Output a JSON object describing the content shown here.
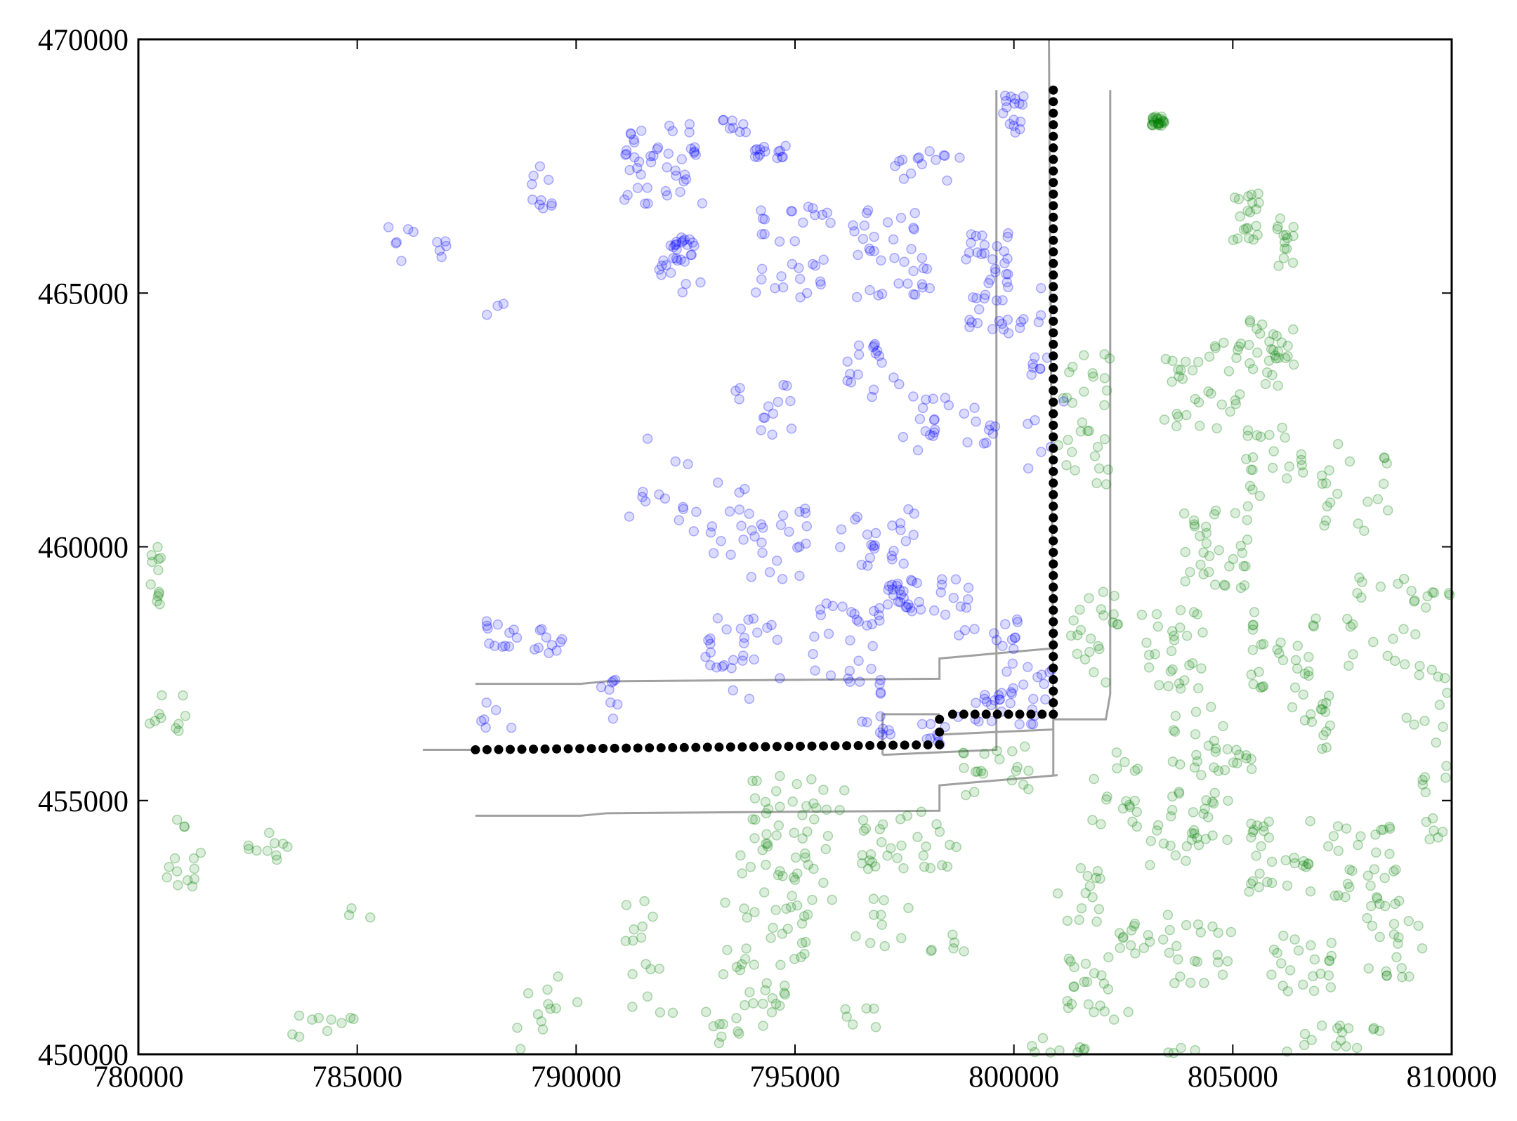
{
  "chart_data": {
    "type": "scatter",
    "title": "",
    "xlabel": "",
    "ylabel": "",
    "xlim": [
      780000,
      810000
    ],
    "ylim": [
      450000,
      470000
    ],
    "xticks": [
      780000,
      785000,
      790000,
      795000,
      800000,
      805000,
      810000
    ],
    "yticks": [
      450000,
      455000,
      460000,
      465000,
      470000
    ],
    "xtick_labels": [
      "780000",
      "785000",
      "790000",
      "795000",
      "800000",
      "805000",
      "810000"
    ],
    "ytick_labels": [
      "450000",
      "455000",
      "460000",
      "465000",
      "470000"
    ],
    "grid": false,
    "legend": "none",
    "colors": {
      "blue_points": "#0000ff",
      "green_points": "#008000",
      "path": "#000000",
      "boundary": "#a0a0a0"
    },
    "clusters": {
      "blue": [
        [
          786000,
          466000,
          300,
          400,
          6
        ],
        [
          786900,
          466000,
          300,
          300,
          5
        ],
        [
          788200,
          464800,
          300,
          300,
          3
        ],
        [
          789200,
          467000,
          250,
          500,
          10
        ],
        [
          792000,
          467500,
          900,
          900,
          45
        ],
        [
          794400,
          467800,
          400,
          150,
          14
        ],
        [
          793600,
          468300,
          300,
          150,
          8
        ],
        [
          798000,
          467500,
          800,
          300,
          14
        ],
        [
          792400,
          465500,
          500,
          500,
          22
        ],
        [
          792400,
          466000,
          200,
          100,
          8
        ],
        [
          795000,
          465800,
          900,
          900,
          32
        ],
        [
          797200,
          465800,
          900,
          900,
          36
        ],
        [
          799400,
          465200,
          500,
          1000,
          42
        ],
        [
          800000,
          468500,
          300,
          400,
          16
        ],
        [
          796800,
          463400,
          700,
          600,
          18
        ],
        [
          797700,
          462500,
          500,
          600,
          14
        ],
        [
          799000,
          462500,
          600,
          600,
          12
        ],
        [
          791800,
          461500,
          800,
          1100,
          12
        ],
        [
          794300,
          462700,
          700,
          600,
          14
        ],
        [
          793300,
          460500,
          700,
          800,
          14
        ],
        [
          794600,
          460000,
          700,
          800,
          22
        ],
        [
          796900,
          460000,
          900,
          800,
          28
        ],
        [
          797500,
          459000,
          400,
          300,
          20
        ],
        [
          796200,
          458000,
          800,
          900,
          32
        ],
        [
          798600,
          458800,
          500,
          600,
          14
        ],
        [
          799900,
          458000,
          500,
          600,
          12
        ],
        [
          799800,
          457000,
          700,
          500,
          24
        ],
        [
          793800,
          457800,
          900,
          800,
          28
        ],
        [
          788300,
          458300,
          500,
          300,
          12
        ],
        [
          789300,
          458200,
          400,
          300,
          10
        ],
        [
          790800,
          457000,
          500,
          400,
          8
        ],
        [
          796700,
          456400,
          500,
          300,
          8
        ],
        [
          798300,
          456400,
          500,
          300,
          10
        ],
        [
          800600,
          457300,
          300,
          400,
          8
        ],
        [
          800800,
          463200,
          400,
          600,
          8
        ],
        [
          800600,
          462000,
          300,
          600,
          5
        ],
        [
          788200,
          456700,
          400,
          300,
          6
        ],
        [
          800400,
          464700,
          300,
          400,
          6
        ]
      ],
      "green": [
        [
          780400,
          459300,
          150,
          700,
          12
        ],
        [
          780600,
          456700,
          500,
          500,
          10
        ],
        [
          781000,
          454000,
          700,
          700,
          14
        ],
        [
          783000,
          454000,
          500,
          400,
          10
        ],
        [
          785000,
          452700,
          300,
          300,
          3
        ],
        [
          784500,
          450500,
          1000,
          300,
          10
        ],
        [
          789000,
          450500,
          700,
          400,
          6
        ],
        [
          795000,
          455000,
          1200,
          500,
          24
        ],
        [
          794800,
          453700,
          1100,
          700,
          32
        ],
        [
          794500,
          452300,
          1200,
          700,
          28
        ],
        [
          794000,
          451000,
          800,
          600,
          18
        ],
        [
          797600,
          454200,
          1100,
          600,
          32
        ],
        [
          797000,
          452600,
          700,
          500,
          10
        ],
        [
          799500,
          455600,
          900,
          500,
          20
        ],
        [
          798400,
          452100,
          500,
          300,
          6
        ],
        [
          791200,
          452700,
          600,
          500,
          8
        ],
        [
          789500,
          451300,
          600,
          400,
          6
        ],
        [
          791800,
          451300,
          600,
          500,
          8
        ],
        [
          793200,
          450600,
          600,
          400,
          6
        ],
        [
          796500,
          450700,
          500,
          300,
          6
        ],
        [
          801600,
          462500,
          600,
          1300,
          30
        ],
        [
          801800,
          458200,
          600,
          1000,
          22
        ],
        [
          802300,
          455200,
          600,
          800,
          18
        ],
        [
          801500,
          453200,
          500,
          600,
          14
        ],
        [
          802000,
          451300,
          800,
          700,
          22
        ],
        [
          801500,
          450000,
          700,
          200,
          10
        ],
        [
          803300,
          468400,
          150,
          100,
          24
        ],
        [
          804300,
          463200,
          900,
          900,
          32
        ],
        [
          805300,
          466500,
          300,
          500,
          20
        ],
        [
          806200,
          466000,
          200,
          500,
          14
        ],
        [
          805800,
          463800,
          700,
          700,
          32
        ],
        [
          806000,
          461700,
          700,
          700,
          22
        ],
        [
          804500,
          460000,
          900,
          900,
          34
        ],
        [
          807800,
          461200,
          800,
          900,
          20
        ],
        [
          803600,
          458000,
          800,
          800,
          28
        ],
        [
          806200,
          458000,
          800,
          800,
          28
        ],
        [
          808300,
          458500,
          900,
          900,
          22
        ],
        [
          804300,
          456200,
          800,
          700,
          24
        ],
        [
          806800,
          456600,
          600,
          600,
          16
        ],
        [
          809400,
          457000,
          500,
          900,
          12
        ],
        [
          804000,
          454500,
          900,
          800,
          32
        ],
        [
          806000,
          454000,
          800,
          800,
          30
        ],
        [
          808000,
          453700,
          900,
          800,
          34
        ],
        [
          809600,
          455000,
          300,
          800,
          12
        ],
        [
          804300,
          452000,
          800,
          600,
          20
        ],
        [
          806500,
          451800,
          800,
          600,
          22
        ],
        [
          808700,
          452100,
          700,
          600,
          18
        ],
        [
          803000,
          452300,
          600,
          500,
          14
        ],
        [
          807300,
          450300,
          1100,
          300,
          16
        ],
        [
          805300,
          455800,
          200,
          200,
          5
        ],
        [
          803600,
          450000,
          800,
          200,
          8
        ],
        [
          800500,
          450200,
          200,
          200,
          3
        ],
        [
          809700,
          458800,
          300,
          400,
          6
        ]
      ]
    },
    "path": {
      "color": "#000000",
      "points": [
        [
          787700,
          456000
        ],
        [
          798300,
          456100
        ],
        [
          798300,
          456600
        ],
        [
          798600,
          456700
        ],
        [
          800900,
          456700
        ],
        [
          800900,
          469000
        ]
      ]
    },
    "boundary_lines": [
      [
        [
          787700,
          457300
        ],
        [
          790100,
          457300
        ],
        [
          790700,
          457350
        ],
        [
          798300,
          457400
        ],
        [
          798300,
          457800
        ],
        [
          800900,
          458000
        ]
      ],
      [
        [
          786500,
          456000
        ],
        [
          787700,
          456000
        ]
      ],
      [
        [
          787700,
          454700
        ],
        [
          790100,
          454700
        ],
        [
          790700,
          454750
        ],
        [
          798300,
          454800
        ],
        [
          798300,
          455300
        ],
        [
          801000,
          455500
        ]
      ],
      [
        [
          797000,
          455900
        ],
        [
          799600,
          456000
        ],
        [
          799600,
          469000
        ]
      ],
      [
        [
          797000,
          455900
        ],
        [
          797000,
          456700
        ],
        [
          798300,
          456700
        ]
      ],
      [
        [
          798300,
          456300
        ],
        [
          800900,
          456400
        ]
      ],
      [
        [
          800800,
          470000
        ],
        [
          800900,
          456700
        ],
        [
          800900,
          455500
        ]
      ],
      [
        [
          800900,
          456600
        ],
        [
          802100,
          456600
        ],
        [
          802200,
          457100
        ],
        [
          802200,
          469000
        ]
      ]
    ]
  }
}
